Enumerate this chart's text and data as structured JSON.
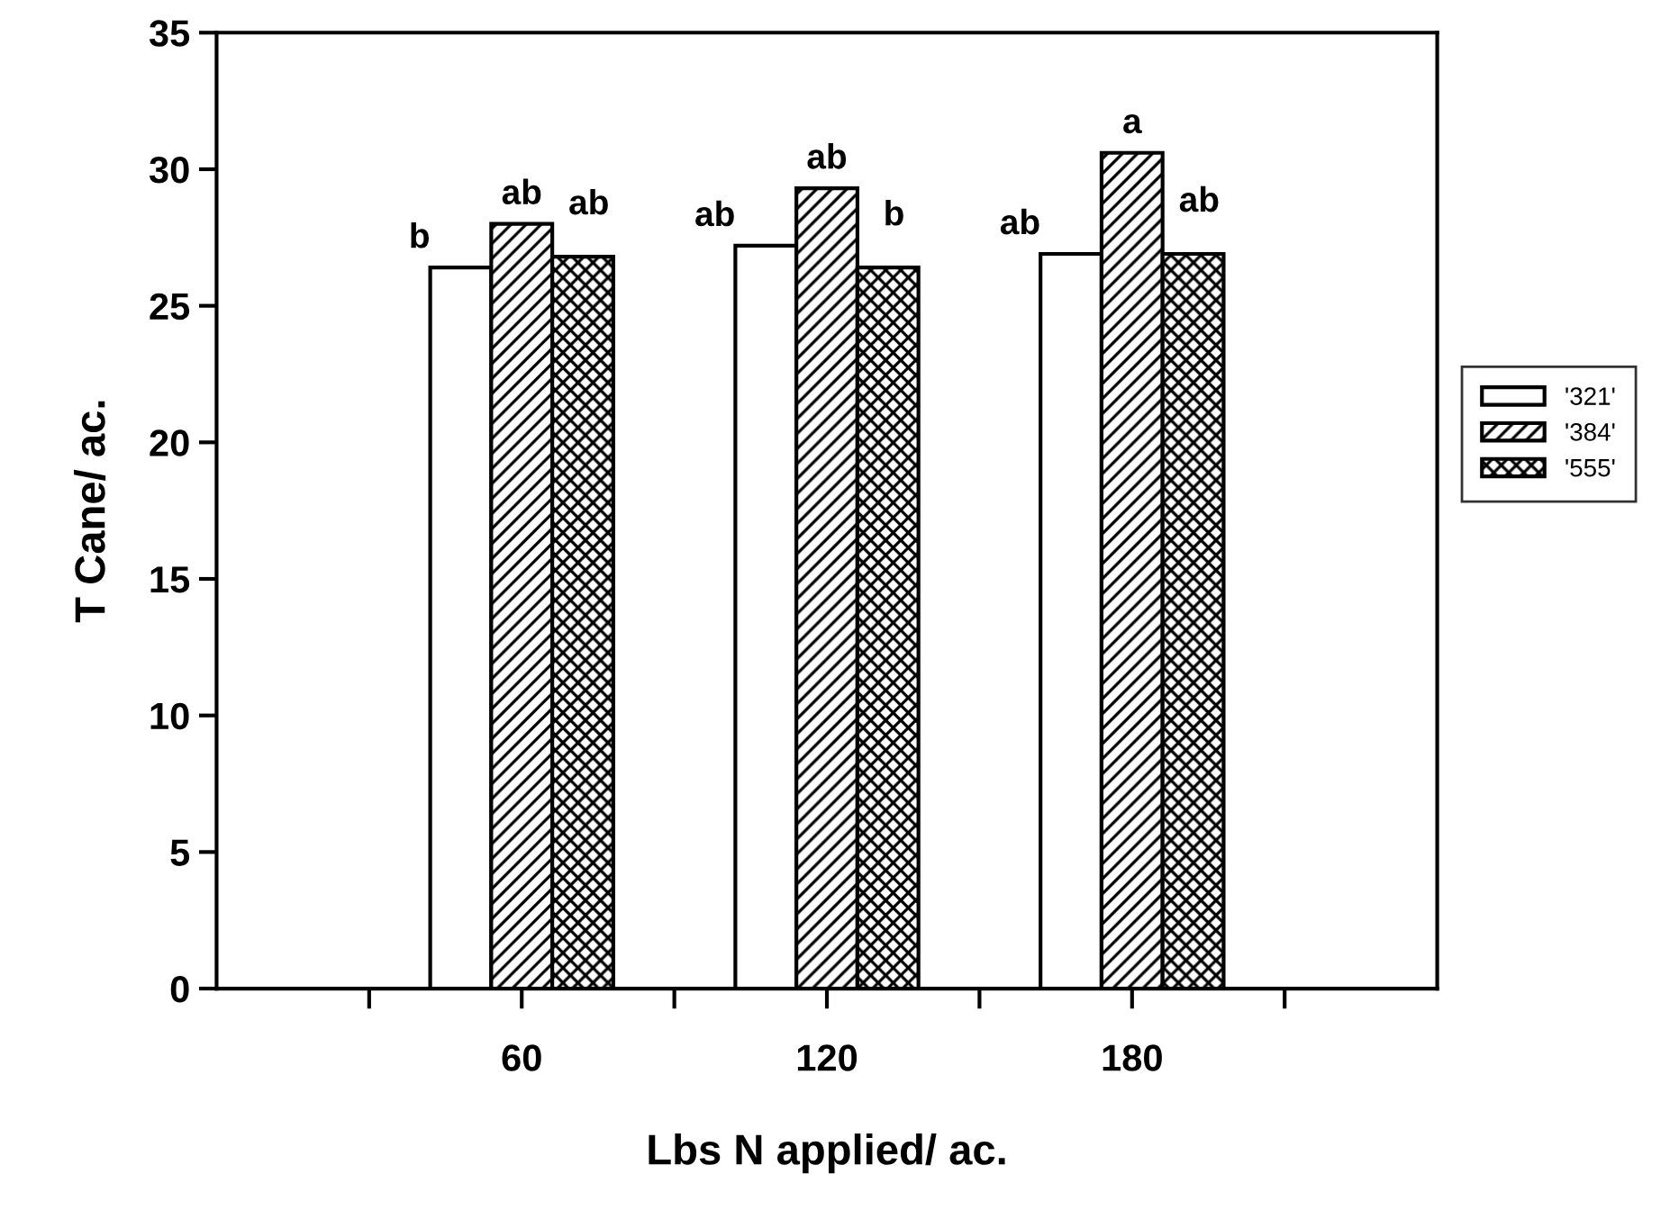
{
  "chart_data": {
    "type": "bar",
    "xlabel": "Lbs N applied/ ac.",
    "ylabel": "T Cane/ ac.",
    "categories": [
      "60",
      "120",
      "180"
    ],
    "series": [
      {
        "name": "'321'",
        "color": "#ffffff",
        "values": [
          26.4,
          27.2,
          26.9
        ],
        "value_labels": [
          "b",
          "ab",
          "ab"
        ]
      },
      {
        "name": "'384'",
        "color": "#000000",
        "values": [
          28.0,
          29.3,
          30.6
        ],
        "value_labels": [
          "ab",
          "ab",
          "a"
        ]
      },
      {
        "name": "'555'",
        "color": "#000000",
        "values": [
          26.8,
          26.4,
          26.9
        ],
        "value_labels": [
          "ab",
          "b",
          "ab"
        ]
      }
    ],
    "ylim": [
      0,
      35
    ],
    "yticks": [
      0,
      5,
      10,
      15,
      20,
      25,
      30,
      35
    ],
    "grid": false,
    "legend": "right"
  }
}
